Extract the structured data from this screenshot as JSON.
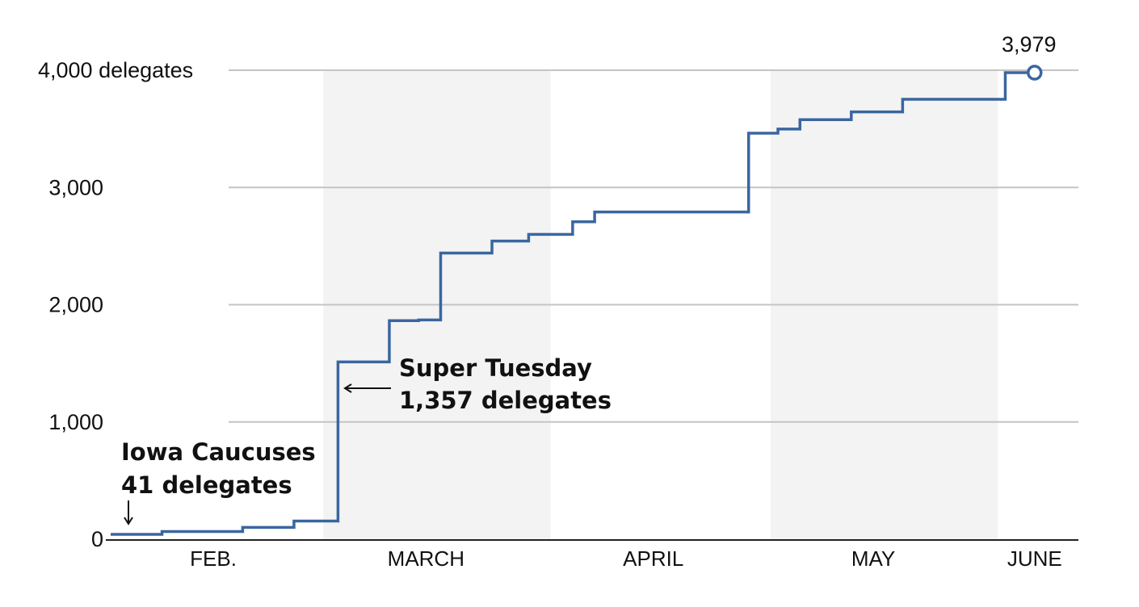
{
  "chart_data": {
    "type": "line",
    "step": true,
    "title": "",
    "xlabel": "",
    "ylabel": "",
    "ylim": [
      0,
      4000
    ],
    "grid": true,
    "y_ticks": [
      {
        "value": 0,
        "label": "0"
      },
      {
        "value": 1000,
        "label": "1,000"
      },
      {
        "value": 2000,
        "label": "2,000"
      },
      {
        "value": 3000,
        "label": "3,000"
      },
      {
        "value": 4000,
        "label": "4,000 delegates"
      }
    ],
    "x_domain": [
      "2020-02-01",
      "2020-06-09"
    ],
    "x_month_labels": [
      {
        "date": "2020-02-15",
        "label": "FEB."
      },
      {
        "date": "2020-03-15",
        "label": "MARCH"
      },
      {
        "date": "2020-04-15",
        "label": "APRIL"
      },
      {
        "date": "2020-05-15",
        "label": "MAY"
      },
      {
        "date": "2020-06-06",
        "label": "JUNE"
      }
    ],
    "shaded_months": [
      {
        "start": "2020-03-01",
        "end": "2020-04-01"
      },
      {
        "start": "2020-05-01",
        "end": "2020-06-01"
      }
    ],
    "series": [
      {
        "color": "#3a66a0",
        "points": [
          {
            "date": "2020-02-01",
            "value": 41
          },
          {
            "date": "2020-02-08",
            "value": 65
          },
          {
            "date": "2020-02-19",
            "value": 101
          },
          {
            "date": "2020-02-26",
            "value": 155
          },
          {
            "date": "2020-03-03",
            "value": 1512
          },
          {
            "date": "2020-03-10",
            "value": 1864
          },
          {
            "date": "2020-03-14",
            "value": 1870
          },
          {
            "date": "2020-03-17",
            "value": 2441
          },
          {
            "date": "2020-03-24",
            "value": 2543
          },
          {
            "date": "2020-03-29",
            "value": 2600
          },
          {
            "date": "2020-04-04",
            "value": 2707
          },
          {
            "date": "2020-04-07",
            "value": 2791
          },
          {
            "date": "2020-04-28",
            "value": 3463
          },
          {
            "date": "2020-05-02",
            "value": 3498
          },
          {
            "date": "2020-05-05",
            "value": 3578
          },
          {
            "date": "2020-05-12",
            "value": 3645
          },
          {
            "date": "2020-05-19",
            "value": 3752
          },
          {
            "date": "2020-06-02",
            "value": 3979
          },
          {
            "date": "2020-06-06",
            "value": 3979
          }
        ]
      }
    ],
    "annotations": [
      {
        "lines": [
          "Iowa Caucuses",
          "41 delegates"
        ],
        "arrow": "down"
      },
      {
        "lines": [
          "Super Tuesday",
          "1,357 delegates"
        ],
        "arrow": "left"
      }
    ],
    "end_label": "3,979"
  }
}
